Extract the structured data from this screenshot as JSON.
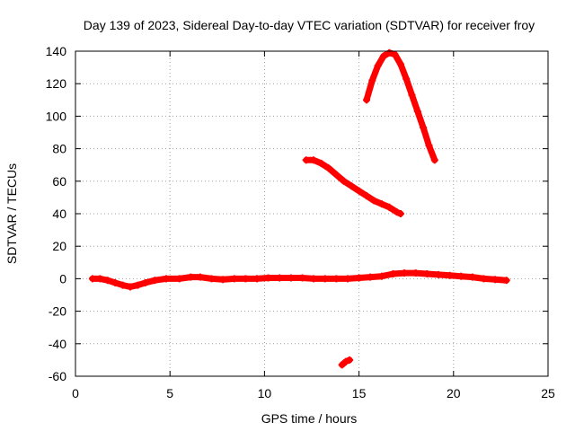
{
  "chart_data": {
    "type": "scatter",
    "title": "Day 139 of 2023, Sidereal Day-to-day VTEC variation (SDTVAR) for receiver froy",
    "xlabel": "GPS time / hours",
    "ylabel": "SDTVAR / TECUs",
    "xlim": [
      0,
      25
    ],
    "ylim": [
      -60,
      140
    ],
    "xticks": [
      0,
      5,
      10,
      15,
      20,
      25
    ],
    "yticks": [
      -60,
      -40,
      -20,
      0,
      20,
      40,
      60,
      80,
      100,
      120,
      140
    ],
    "grid": true,
    "legend": "none",
    "marker_color": "#ff0000",
    "series": [
      {
        "x": [
          0.9,
          1.3,
          1.7,
          2.1,
          2.5,
          2.9,
          3.3,
          3.7,
          4.2,
          4.8,
          5.5,
          6.1,
          6.6,
          7.2,
          7.8,
          8.4,
          9.0,
          9.6,
          10.2,
          10.8,
          11.4,
          12.0,
          12.6,
          13.2,
          13.8,
          14.4,
          15.0,
          15.6,
          16.2,
          16.8,
          17.4,
          18.0,
          18.6,
          19.2,
          19.8,
          20.4,
          21.0,
          21.6,
          22.2,
          22.8
        ],
        "y": [
          0,
          0,
          -1,
          -2.5,
          -4,
          -5,
          -4,
          -2.5,
          -1,
          0,
          0,
          1,
          1,
          0,
          -0.5,
          0,
          0,
          0,
          0.5,
          0.5,
          0.5,
          0.5,
          0,
          0,
          0,
          0,
          0.5,
          1,
          1.5,
          3,
          3.5,
          3.5,
          3,
          2.5,
          2,
          1.5,
          1,
          0,
          -0.5,
          -1
        ]
      },
      {
        "x": [
          12.2,
          12.6,
          13.0,
          13.4,
          13.8,
          14.2,
          14.6,
          15.0,
          15.4,
          15.8,
          16.2,
          16.6,
          17.0,
          17.2
        ],
        "y": [
          73,
          73,
          71,
          68,
          64,
          60,
          57,
          54,
          51,
          48,
          46,
          44,
          41,
          40
        ]
      },
      {
        "x": [
          15.4,
          15.7,
          16.0,
          16.3,
          16.6,
          16.9,
          17.2,
          17.5,
          17.8,
          18.1,
          18.4,
          18.7,
          19.0
        ],
        "y": [
          110,
          122,
          131,
          137,
          139,
          138,
          132,
          123,
          113,
          103,
          93,
          82,
          73
        ]
      },
      {
        "x": [
          14.1,
          14.3,
          14.5
        ],
        "y": [
          -53,
          -51,
          -50
        ]
      }
    ]
  }
}
